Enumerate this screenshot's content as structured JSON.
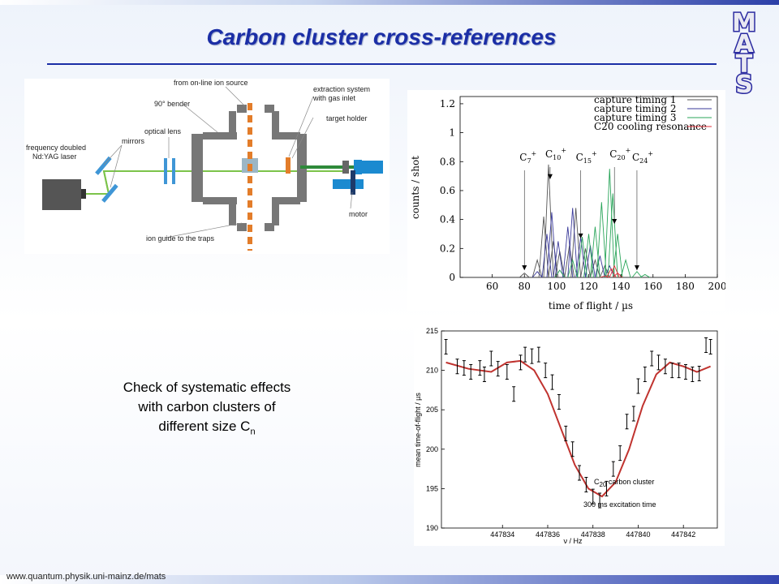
{
  "slide": {
    "title": "Carbon cluster cross-references",
    "logo_letters": [
      "M",
      "A",
      "T",
      "S"
    ],
    "caption_lines": [
      "Check of systematic effects",
      "with carbon clusters of",
      "different size C"
    ],
    "caption_sub": "n",
    "footer_url": "www.quantum.physik.uni-mainz.de/mats",
    "colors": {
      "title": "#1b2ea6",
      "accent": "#2b3fa8"
    }
  },
  "setup_labels": {
    "ion_source": "from on-line ion source",
    "bender": "90° bender",
    "extraction": "extraction system",
    "extraction2": "with gas inlet",
    "target": "target holder",
    "optical": "optical lens",
    "mirrors": "mirrors",
    "laser1": "frequency doubled",
    "laser2": "Nd:YAG laser",
    "motor": "motor",
    "ion_guide": "ion guide to the traps"
  },
  "chart_data": [
    {
      "type": "line",
      "xlabel": "time of flight / µs",
      "ylabel": "counts / shot",
      "xlim": [
        40,
        200
      ],
      "ylim": [
        0,
        1.25
      ],
      "x_ticks": [
        60,
        80,
        100,
        120,
        140,
        160,
        180,
        200
      ],
      "y_ticks": [
        0,
        0.2,
        0.4,
        0.6,
        0.8,
        1,
        1.2
      ],
      "legend": [
        "capture timing 1",
        "capture timing 2",
        "capture timing 3",
        "C20 cooling resonance"
      ],
      "legend_colors": [
        "#555555",
        "#3a3a9a",
        "#2aa55a",
        "#e0303a"
      ],
      "legend_position": "top-right",
      "peaks": [
        {
          "series": 0,
          "points": [
            [
              80,
              0.03
            ],
            [
              88,
              0.12
            ],
            [
              92,
              0.42
            ],
            [
              95,
              0.78
            ],
            [
              98,
              0.25
            ],
            [
              102,
              0.18
            ],
            [
              108,
              0.22
            ],
            [
              112,
              0.48
            ],
            [
              118,
              0.2
            ],
            [
              124,
              0.12
            ],
            [
              130,
              0.08
            ]
          ]
        },
        {
          "series": 1,
          "points": [
            [
              88,
              0.04
            ],
            [
              94,
              0.3
            ],
            [
              97,
              0.45
            ],
            [
              101,
              0.25
            ],
            [
              107,
              0.35
            ],
            [
              110,
              0.48
            ],
            [
              115,
              0.28
            ],
            [
              121,
              0.22
            ],
            [
              127,
              0.15
            ],
            [
              133,
              0.08
            ]
          ]
        },
        {
          "series": 2,
          "points": [
            [
              102,
              0.05
            ],
            [
              110,
              0.12
            ],
            [
              116,
              0.28
            ],
            [
              120,
              0.3
            ],
            [
              124,
              0.35
            ],
            [
              128,
              0.52
            ],
            [
              133,
              0.75
            ],
            [
              135,
              0.58
            ],
            [
              138,
              0.3
            ],
            [
              143,
              0.12
            ],
            [
              150,
              0.04
            ],
            [
              155,
              0.02
            ]
          ]
        },
        {
          "series": 3,
          "points": [
            [
              130,
              0.01
            ],
            [
              134,
              0.06
            ],
            [
              136,
              0.08
            ],
            [
              138,
              0.03
            ]
          ]
        }
      ],
      "annotations": [
        {
          "label": "C",
          "sub": "7",
          "x": 80,
          "arrow_y": 0.05
        },
        {
          "label": "C",
          "sub": "10",
          "x": 96,
          "arrow_y": 0.68
        },
        {
          "label": "C",
          "sub": "15",
          "x": 115,
          "arrow_y": 0.27
        },
        {
          "label": "C",
          "sub": "20",
          "x": 136,
          "arrow_y": 0.37
        },
        {
          "label": "C",
          "sub": "24",
          "x": 150,
          "arrow_y": 0.05
        }
      ]
    },
    {
      "type": "scatter",
      "xlabel": "ν / Hz",
      "ylabel": "mean time-of-flight / µs",
      "xlim": [
        447831.3,
        447843.5
      ],
      "ylim": [
        190,
        215
      ],
      "x_ticks": [
        447834,
        447836,
        447838,
        447840,
        447842
      ],
      "y_ticks": [
        190,
        195,
        200,
        205,
        210,
        215
      ],
      "annotation_label": "C",
      "annotation_sub": "20",
      "annotation_rest": " carbon cluster",
      "annotation_2": "300 ms excitation time",
      "x": [
        447831.5,
        447832,
        447832.3,
        447832.6,
        447833,
        447833.2,
        447833.5,
        447833.8,
        447834.2,
        447834.5,
        447834.8,
        447835,
        447835.3,
        447835.6,
        447835.9,
        447836.2,
        447836.5,
        447836.8,
        447837.1,
        447837.4,
        447837.7,
        447838,
        447838.3,
        447838.6,
        447838.9,
        447839.2,
        447839.5,
        447839.8,
        447840,
        447840.3,
        447840.6,
        447840.9,
        447841.2,
        447841.5,
        447841.8,
        447842.1,
        447842.4,
        447842.7,
        447843,
        447843.2
      ],
      "y": [
        213,
        210.5,
        210.3,
        209.8,
        210.3,
        209.5,
        211.5,
        210.2,
        209.8,
        207,
        211,
        212,
        211.8,
        212,
        210,
        208.5,
        206,
        202,
        200,
        197,
        195.5,
        194,
        193.5,
        195,
        197.5,
        199.5,
        203.5,
        204.5,
        208,
        209.5,
        211.5,
        211,
        210.5,
        210,
        210,
        209.8,
        209.5,
        209.6,
        213.2,
        213
      ],
      "fit_x": [
        447831.5,
        447832.5,
        447833.5,
        447834.2,
        447834.8,
        447835.4,
        447836,
        447836.6,
        447837.2,
        447837.8,
        447838.4,
        447839,
        447839.6,
        447840.2,
        447840.8,
        447841.4,
        447842,
        447842.6,
        447843.2
      ],
      "fit_y": [
        211,
        210.2,
        209.8,
        211,
        211.2,
        210,
        207,
        202.5,
        198,
        195,
        194,
        195.8,
        200,
        205.5,
        209.5,
        211,
        210.5,
        209.8,
        210.5
      ]
    }
  ]
}
